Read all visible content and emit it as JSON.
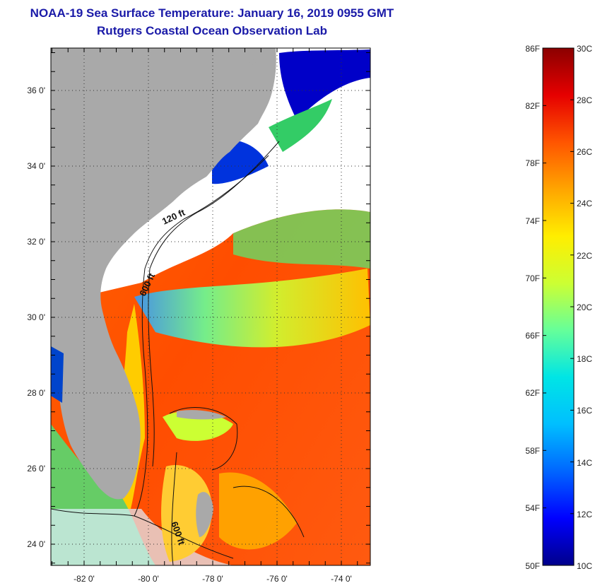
{
  "title": {
    "line1": "NOAA-19 Sea Surface Temperature:  January 16, 2019 0955 GMT",
    "line2": "Rutgers Coastal Ocean Observation Lab"
  },
  "map": {
    "lat_labels": [
      "36 0'",
      "34 0'",
      "32 0'",
      "30 0'",
      "28 0'",
      "26 0'",
      "24 0'"
    ],
    "lon_labels": [
      "-82 0'",
      "-80 0'",
      "-78 0'",
      "-76 0'",
      "-74 0'"
    ],
    "contour_labels": [
      "120 ft",
      "600 ft",
      "600 ft"
    ],
    "land_color": "#a9a9a9",
    "cloud_color": "#ffffff"
  },
  "colorbar": {
    "fahrenheit": [
      "86F",
      "82F",
      "78F",
      "74F",
      "70F",
      "66F",
      "62F",
      "58F",
      "54F",
      "50F"
    ],
    "celsius": [
      "30C",
      "28C",
      "26C",
      "24C",
      "22C",
      "20C",
      "18C",
      "16C",
      "14C",
      "12C",
      "10C"
    ],
    "colors": [
      "#00008b",
      "#0000ff",
      "#0066ff",
      "#00bfff",
      "#00e5e5",
      "#66ff99",
      "#ccff33",
      "#ffee00",
      "#ffa500",
      "#ff5500",
      "#e60000",
      "#8b0000"
    ]
  }
}
